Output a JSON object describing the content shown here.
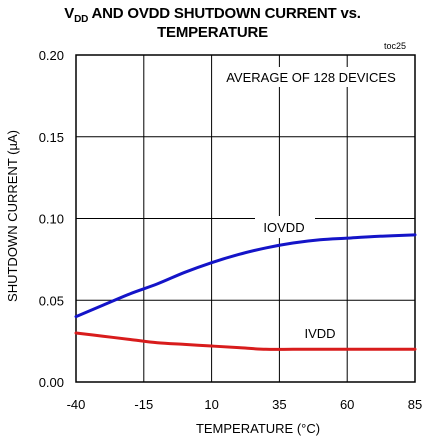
{
  "chart_data": {
    "type": "line",
    "title_prefix": "V",
    "title_subscript": "DD",
    "title_rest": " AND OVDD SHUTDOWN CURRENT vs.",
    "title_line2": "TEMPERATURE",
    "figure_ref": "toc25",
    "annotation": "AVERAGE OF 128 DEVICES",
    "xlabel": "TEMPERATURE (°C)",
    "ylabel": "SHUTDOWN CURRENT (µA)",
    "xlim": [
      -40,
      85
    ],
    "ylim": [
      0,
      0.2
    ],
    "xticks": [
      "-40",
      "-15",
      "10",
      "35",
      "60",
      "85"
    ],
    "yticks": [
      "0.00",
      "0.05",
      "0.10",
      "0.15",
      "0.20"
    ],
    "x": [
      -40,
      -30,
      -20,
      -10,
      0,
      10,
      20,
      30,
      40,
      50,
      60,
      70,
      85
    ],
    "series": [
      {
        "name": "IOVDD",
        "color": "#1414c8",
        "values": [
          0.04,
          0.047,
          0.054,
          0.06,
          0.067,
          0.073,
          0.078,
          0.082,
          0.085,
          0.087,
          0.088,
          0.089,
          0.09
        ]
      },
      {
        "name": "IVDD",
        "color": "#d81c1c",
        "values": [
          0.03,
          0.028,
          0.026,
          0.024,
          0.023,
          0.022,
          0.021,
          0.02,
          0.02,
          0.02,
          0.02,
          0.02,
          0.02
        ]
      }
    ],
    "grid": true
  }
}
